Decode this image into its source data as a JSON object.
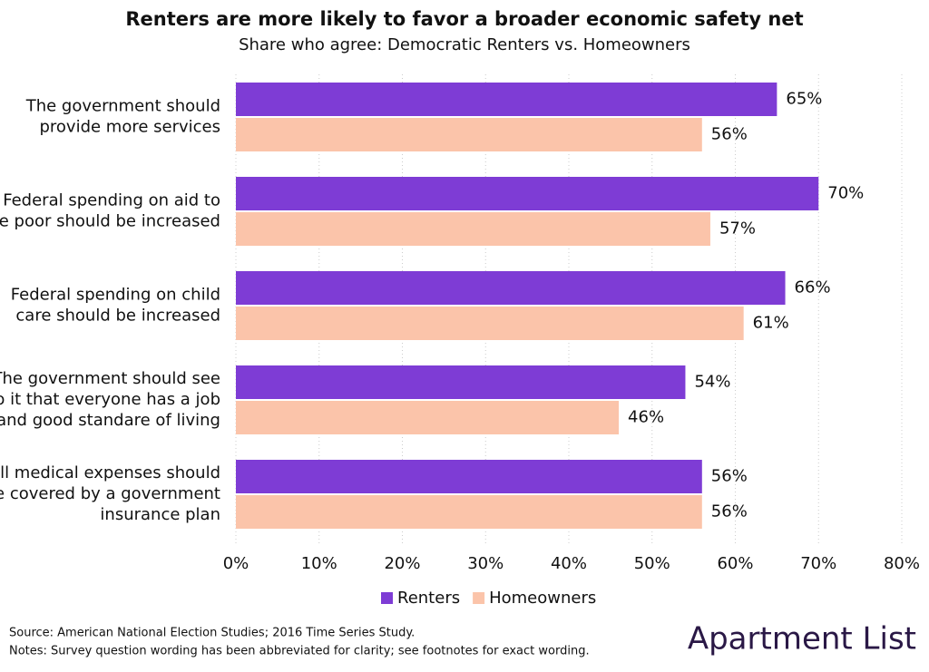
{
  "chart_data": {
    "type": "bar",
    "orientation": "horizontal",
    "title": "Renters are more likely to favor a broader economic safety net",
    "subtitle": "Share who agree: Democratic Renters vs. Homeowners",
    "categories": [
      [
        "The government should",
        "provide more services"
      ],
      [
        "Federal spending on aid to",
        "the poor should be increased"
      ],
      [
        "Federal spending on child",
        "care should be increased"
      ],
      [
        "The government should see",
        "to it that everyone has a job",
        "and good standare of living"
      ],
      [
        "All medical expenses should",
        "be covered by a government",
        "insurance plan"
      ]
    ],
    "series": [
      {
        "name": "Renters",
        "color": "#7e3cd5",
        "values": [
          65,
          70,
          66,
          54,
          56
        ],
        "value_labels": [
          "65%",
          "70%",
          "66%",
          "54%",
          "56%"
        ]
      },
      {
        "name": "Homeowners",
        "color": "#fbc4aa",
        "values": [
          56,
          57,
          61,
          46,
          56
        ],
        "value_labels": [
          "56%",
          "57%",
          "61%",
          "46%",
          "56%"
        ]
      }
    ],
    "xlim": [
      0,
      80
    ],
    "xticks": [
      {
        "value": 0,
        "label": "0%"
      },
      {
        "value": 10,
        "label": "10%"
      },
      {
        "value": 20,
        "label": "20%"
      },
      {
        "value": 30,
        "label": "30%"
      },
      {
        "value": 40,
        "label": "40%"
      },
      {
        "value": 50,
        "label": "50%"
      },
      {
        "value": 60,
        "label": "60%"
      },
      {
        "value": 70,
        "label": "70%"
      },
      {
        "value": 80,
        "label": "80%"
      }
    ],
    "grid": true,
    "legend": "bottom",
    "source": "Source: American National Election Studies; 2016 Time Series Study.",
    "notes": "Notes: Survey question wording has been abbreviated for clarity; see footnotes for exact wording.",
    "brand": "Apartment List"
  }
}
